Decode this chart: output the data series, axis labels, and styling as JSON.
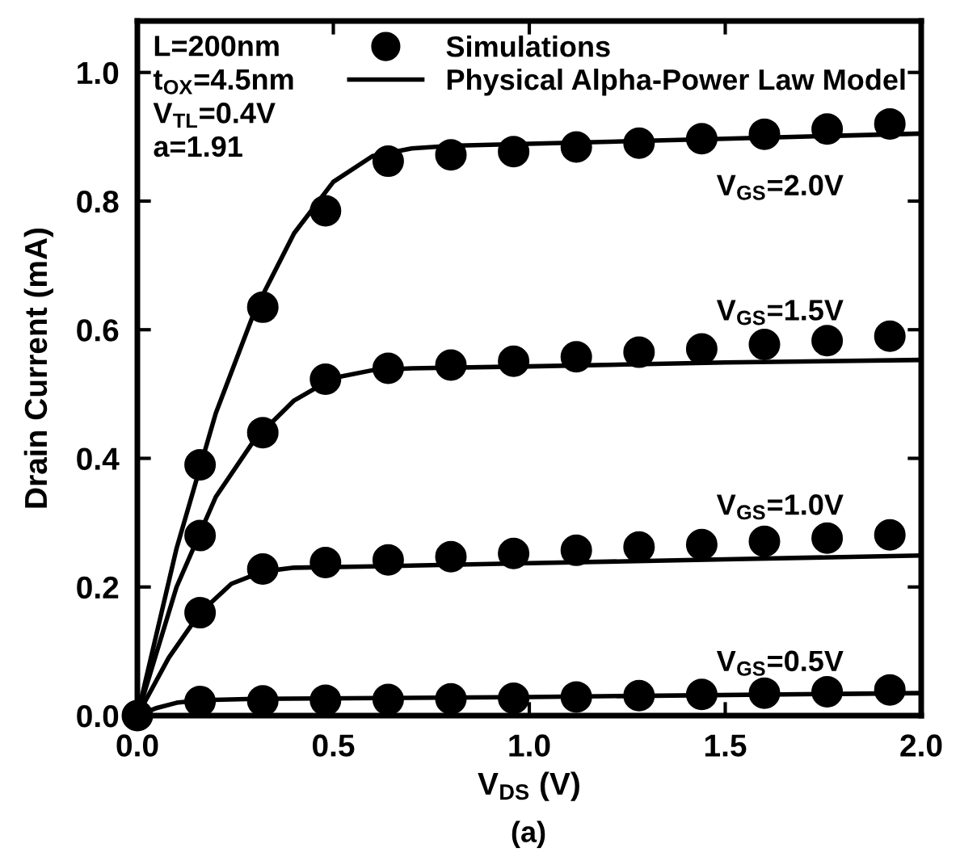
{
  "chart_data": {
    "type": "scatter",
    "xlabel": "V$_{DS}$ (V)",
    "ylabel": "Drain Current (mA)",
    "xlim": [
      0,
      2.0
    ],
    "ylim": [
      0,
      1.08
    ],
    "xticks": [
      {
        "value": 0,
        "label": "0.0"
      },
      0.5,
      {
        "value": 1,
        "label": "1.0"
      },
      1.5,
      {
        "value": 2,
        "label": "2.0"
      }
    ],
    "yticks": [
      {
        "value": 0,
        "label": "0.0"
      },
      0.2,
      0.4,
      0.6,
      0.8,
      {
        "value": 1,
        "label": "1.0"
      }
    ],
    "legend": "top right",
    "series": [
      {
        "name": "Simulations",
        "marker": "circle",
        "color": "#000000",
        "x": [
          0,
          0.16,
          0.32,
          0.48,
          0.64,
          0.8,
          0.96,
          1.12,
          1.28,
          1.44,
          1.6,
          1.76,
          1.92
        ],
        "values": [
          0,
          0.39,
          0.635,
          0.785,
          0.862,
          0.872,
          0.877,
          0.884,
          0.89,
          0.897,
          0.904,
          0.912,
          0.92
        ]
      },
      {
        "marker": "circle",
        "color": "#000000",
        "x": [
          0.16,
          0.32,
          0.48,
          0.64,
          0.8,
          0.96,
          1.12,
          1.28,
          1.44,
          1.6,
          1.76,
          1.92
        ],
        "values": [
          0.28,
          0.44,
          0.523,
          0.54,
          0.545,
          0.551,
          0.558,
          0.565,
          0.57,
          0.577,
          0.583,
          0.59
        ]
      },
      {
        "marker": "circle",
        "color": "#000000",
        "x": [
          0.16,
          0.32,
          0.48,
          0.64,
          0.8,
          0.96,
          1.12,
          1.28,
          1.44,
          1.6,
          1.76,
          1.92
        ],
        "values": [
          0.16,
          0.228,
          0.238,
          0.242,
          0.247,
          0.252,
          0.257,
          0.262,
          0.266,
          0.271,
          0.276,
          0.281
        ]
      },
      {
        "marker": "circle",
        "color": "#000000",
        "x": [
          0.16,
          0.32,
          0.48,
          0.64,
          0.8,
          0.96,
          1.12,
          1.28,
          1.44,
          1.6,
          1.76,
          1.92
        ],
        "values": [
          0.022,
          0.023,
          0.024,
          0.025,
          0.026,
          0.027,
          0.029,
          0.031,
          0.033,
          0.035,
          0.037,
          0.04
        ]
      },
      {
        "name": "Physical Alpha-Power Law Model",
        "type": "line",
        "line_style": "solid",
        "color": "#000000",
        "x": [
          0,
          0.1,
          0.2,
          0.3,
          0.4,
          0.5,
          0.6,
          0.7,
          0.8,
          1.0,
          1.5,
          2.0
        ],
        "values": [
          0,
          0.26,
          0.47,
          0.63,
          0.75,
          0.83,
          0.87,
          0.882,
          0.886,
          0.889,
          0.897,
          0.905
        ]
      },
      {
        "type": "line",
        "line_style": "solid",
        "color": "#000000",
        "x": [
          0,
          0.1,
          0.2,
          0.3,
          0.4,
          0.5,
          0.6,
          0.7,
          1.0,
          1.5,
          2.0
        ],
        "values": [
          0,
          0.2,
          0.34,
          0.43,
          0.49,
          0.525,
          0.537,
          0.54,
          0.543,
          0.549,
          0.553
        ]
      },
      {
        "type": "line",
        "line_style": "solid",
        "color": "#000000",
        "x": [
          0,
          0.08,
          0.16,
          0.24,
          0.32,
          0.4,
          0.6,
          1.0,
          1.5,
          2.0
        ],
        "values": [
          0,
          0.09,
          0.16,
          0.205,
          0.224,
          0.23,
          0.232,
          0.237,
          0.243,
          0.249
        ]
      },
      {
        "type": "line",
        "line_style": "solid",
        "color": "#000000",
        "x": [
          0,
          0.05,
          0.1,
          0.16,
          0.3,
          1.0,
          2.0
        ],
        "values": [
          0,
          0.012,
          0.02,
          0.024,
          0.026,
          0.029,
          0.035
        ]
      }
    ],
    "annotations": [
      "L=200nm\nt$_{OX}$=4.5nm\nV$_{TL}$=0.4V\na=1.91",
      "V$_{GS}$=2.0V",
      "V$_{GS}$=1.5V",
      "V$_{GS}$=1.0V",
      "V$_{GS}$=0.5V",
      "(a)"
    ]
  }
}
